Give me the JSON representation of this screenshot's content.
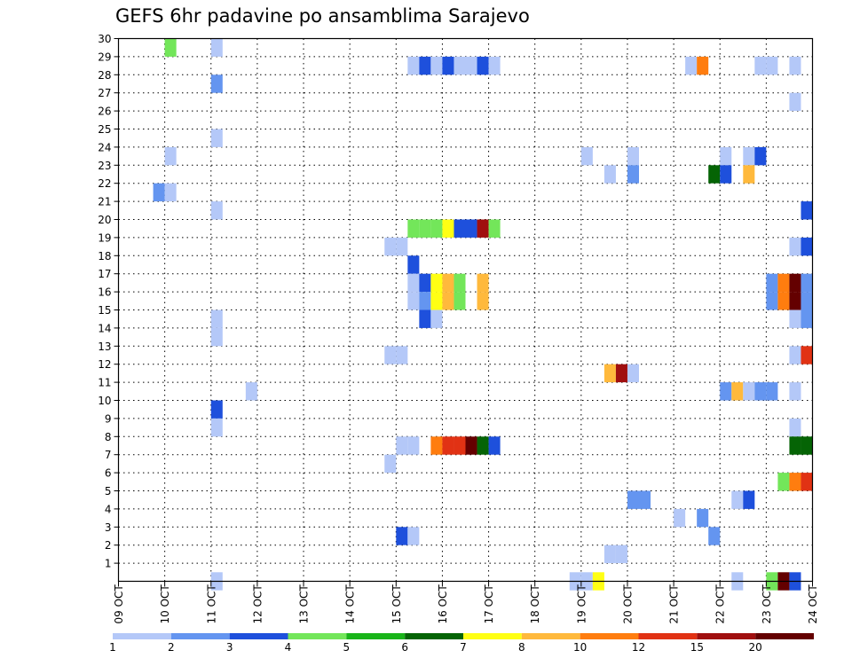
{
  "chart_data": {
    "type": "heatmap",
    "title": "GEFS 6hr padavine po ansamblima Sarajevo",
    "xlabel": "",
    "ylabel": "",
    "x_axis": {
      "start_day": 9,
      "end_day": 24,
      "steps_per_day": 4,
      "tick_labels": [
        "09 OCT",
        "10 OCT",
        "11 OCT",
        "12 OCT",
        "13 OCT",
        "14 OCT",
        "15 OCT",
        "16 OCT",
        "17 OCT",
        "18 OCT",
        "19 OCT",
        "20 OCT",
        "21 OCT",
        "22 OCT",
        "23 OCT",
        "24 OCT"
      ]
    },
    "y_axis": {
      "min": 0,
      "max": 30,
      "tick_labels": [
        "1",
        "2",
        "3",
        "4",
        "5",
        "6",
        "7",
        "8",
        "9",
        "10",
        "11",
        "12",
        "13",
        "14",
        "15",
        "16",
        "17",
        "18",
        "19",
        "20",
        "21",
        "22",
        "23",
        "24",
        "25",
        "26",
        "27",
        "28",
        "29",
        "30"
      ]
    },
    "grid": true,
    "legend": {
      "placement": "bottom",
      "colors": [
        "#b4c8f8",
        "#6495f0",
        "#1e50dc",
        "#73e65a",
        "#19b419",
        "#056405",
        "#ffff14",
        "#ffb93c",
        "#ff7d0f",
        "#e13214",
        "#a00f0f",
        "#640000"
      ],
      "labels": [
        "1",
        "2",
        "3",
        "4",
        "5",
        "6",
        "7",
        "8",
        "10",
        "12",
        "15",
        "20"
      ]
    },
    "cells": [
      [
        -1,
        29,
        4
      ],
      [
        -1,
        28,
        1
      ],
      [
        -1,
        28,
        1
      ],
      [
        2,
        28,
        1
      ],
      [
        3,
        28,
        2
      ],
      [
        4,
        28,
        1
      ],
      [
        5,
        28,
        2
      ],
      [
        6,
        28,
        1
      ],
      [
        7,
        28,
        1
      ],
      [
        8,
        28,
        2
      ],
      [
        9,
        28,
        1
      ],
      [
        26,
        28,
        1
      ],
      [
        27,
        28,
        9
      ],
      [
        32,
        28,
        1
      ],
      [
        33,
        28,
        1
      ],
      [
        35,
        28,
        1
      ],
      [
        3,
        29,
        4
      ],
      [
        7,
        29,
        1
      ],
      [
        7,
        27,
        2
      ],
      [
        35,
        26,
        1
      ],
      [
        7,
        24,
        1
      ],
      [
        3,
        23,
        1
      ],
      [
        17,
        23,
        1
      ],
      [
        21,
        23,
        1
      ],
      [
        29,
        23,
        1
      ],
      [
        31,
        23,
        1
      ],
      [
        32,
        23,
        3
      ],
      [
        19,
        22,
        1
      ],
      [
        21,
        22,
        2
      ],
      [
        28,
        22,
        6
      ],
      [
        29,
        22,
        3
      ],
      [
        31,
        22,
        8
      ],
      [
        2,
        21,
        2
      ],
      [
        3,
        21,
        1
      ],
      [
        7,
        20,
        1
      ],
      [
        36,
        20,
        3
      ],
      [
        -1,
        19,
        0
      ],
      [
        0,
        19,
        0
      ],
      [
        1,
        19,
        0
      ],
      [
        2,
        19,
        0
      ],
      [
        3,
        19,
        0
      ],
      [
        -1,
        18,
        0
      ],
      [
        -1,
        17,
        0
      ],
      [
        -1,
        16,
        0
      ],
      [
        -1,
        15,
        0
      ],
      [
        -1,
        14,
        0
      ],
      [
        -1,
        13,
        0
      ],
      [
        -1,
        12,
        0
      ],
      [
        -1,
        11,
        0
      ],
      [
        -1,
        10,
        0
      ],
      [
        -1,
        9,
        0
      ],
      [
        -1,
        8,
        0
      ],
      [
        -1,
        7,
        0
      ],
      [
        -1,
        6,
        0
      ],
      [
        -1,
        5,
        0
      ],
      [
        -1,
        4,
        0
      ],
      [
        -1,
        3,
        0
      ],
      [
        -1,
        2,
        0
      ],
      [
        -1,
        1,
        0
      ]
    ]
  }
}
